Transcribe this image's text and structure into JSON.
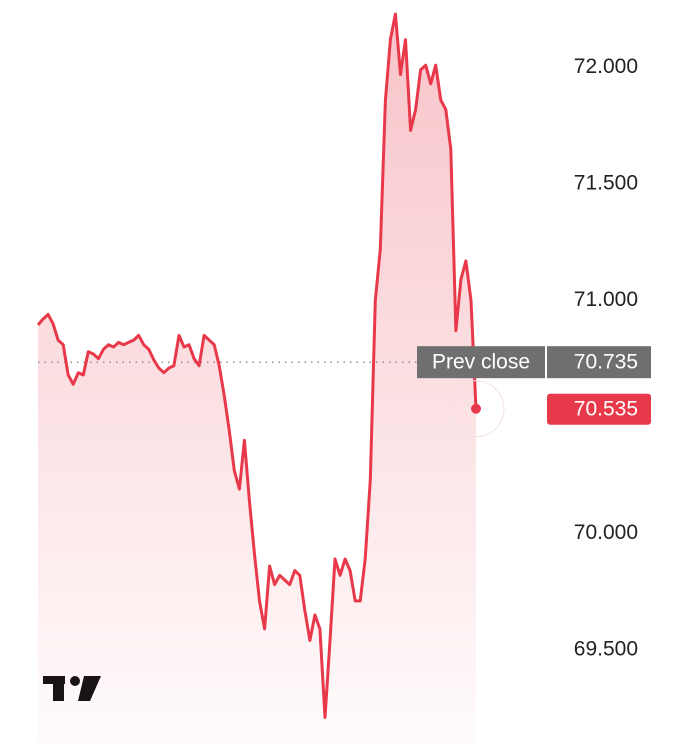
{
  "chart_data": {
    "type": "line",
    "color": "#e8394a",
    "values": [
      70.895,
      70.92,
      70.94,
      70.9,
      70.83,
      70.81,
      70.68,
      70.64,
      70.69,
      70.68,
      70.78,
      70.77,
      70.75,
      70.79,
      70.81,
      70.8,
      70.82,
      70.81,
      70.82,
      70.83,
      70.85,
      70.81,
      70.79,
      70.745,
      70.71,
      70.69,
      70.71,
      70.72,
      70.85,
      70.8,
      70.81,
      70.75,
      70.72,
      70.85,
      70.83,
      70.81,
      70.72,
      70.59,
      70.44,
      70.27,
      70.19,
      70.4,
      70.14,
      69.91,
      69.71,
      69.59,
      69.86,
      69.78,
      69.82,
      69.8,
      69.78,
      69.84,
      69.82,
      69.67,
      69.54,
      69.65,
      69.59,
      69.21,
      69.54,
      69.89,
      69.82,
      69.89,
      69.84,
      69.71,
      69.71,
      69.89,
      70.23,
      71.0,
      71.22,
      71.86,
      72.12,
      72.23,
      71.97,
      72.12,
      71.73,
      71.82,
      71.99,
      72.01,
      71.93,
      72.01,
      71.86,
      71.82,
      71.65,
      70.87,
      71.09,
      71.17,
      71.0,
      70.535
    ],
    "ylim": [
      69.1,
      72.29
    ],
    "yticks": [
      {
        "value": 69.5,
        "label": "69.500"
      },
      {
        "value": 70,
        "label": "70.000"
      },
      {
        "value": 71,
        "label": "71.000"
      },
      {
        "value": 71.5,
        "label": "71.500"
      },
      {
        "value": 72,
        "label": "72.000"
      }
    ],
    "reference_line": {
      "label": "Prev close",
      "value": 70.735
    }
  }
}
